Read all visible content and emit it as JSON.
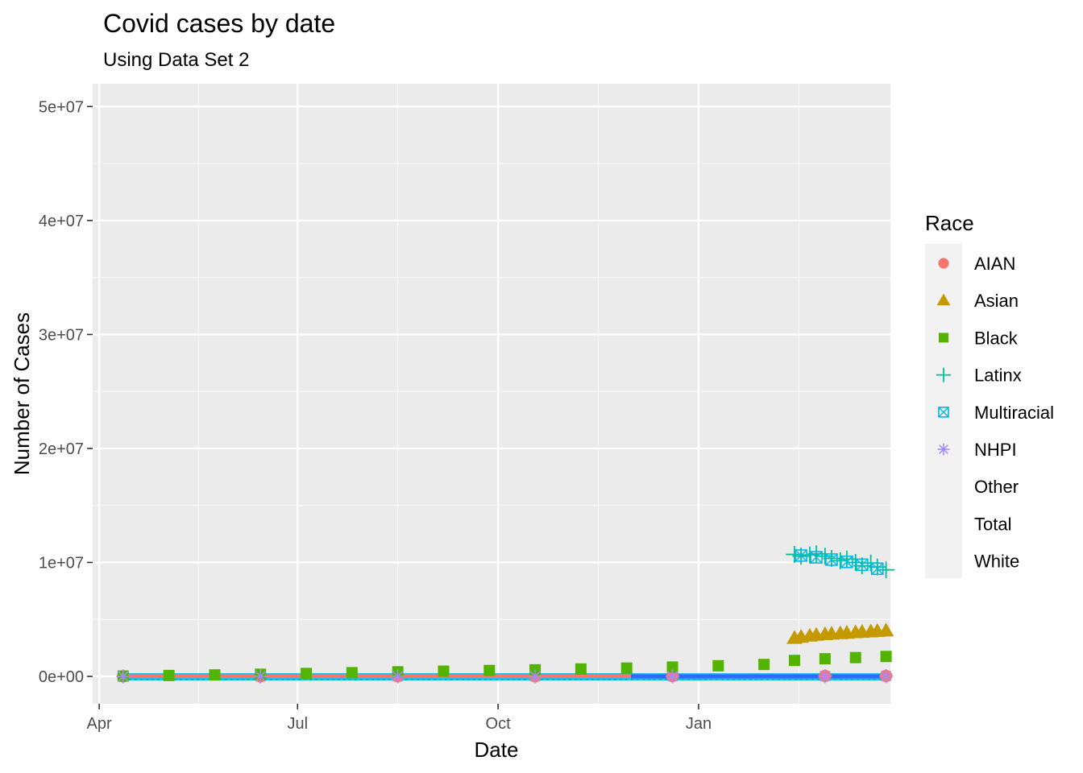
{
  "chart_data": {
    "type": "scatter",
    "title": "Covid cases by date",
    "subtitle": "Using Data Set 2",
    "xlabel": "Date",
    "ylabel": "Number of Cases",
    "x_range": [
      "2020-03-29",
      "2021-03-30"
    ],
    "ylim": [
      -2400000,
      52000000
    ],
    "x_ticks": [
      {
        "date": "2020-04-01",
        "label": "Apr"
      },
      {
        "date": "2020-07-01",
        "label": "Jul"
      },
      {
        "date": "2020-10-01",
        "label": "Oct"
      },
      {
        "date": "2021-01-01",
        "label": "Jan"
      }
    ],
    "y_ticks": [
      {
        "value": 0,
        "label": "0e+00"
      },
      {
        "value": 10000000,
        "label": "1e+07"
      },
      {
        "value": 20000000,
        "label": "2e+07"
      },
      {
        "value": 30000000,
        "label": "3e+07"
      },
      {
        "value": 40000000,
        "label": "4e+07"
      },
      {
        "value": 50000000,
        "label": "5e+07"
      }
    ],
    "grid": true,
    "legend": {
      "title": "Race",
      "position": "right"
    },
    "series": [
      {
        "name": "AIAN",
        "color": "#F8766D",
        "shape": "circle",
        "x": [
          "2020-04-12",
          "2020-06-14",
          "2020-08-16",
          "2020-10-18",
          "2020-12-20",
          "2021-02-28",
          "2021-03-28"
        ],
        "y": [
          3000,
          8000,
          14000,
          20000,
          30000,
          40000,
          45000
        ]
      },
      {
        "name": "Asian",
        "color": "#C49A00",
        "shape": "triangle",
        "x": [
          "2021-02-14",
          "2021-02-17",
          "2021-02-21",
          "2021-02-24",
          "2021-02-28",
          "2021-03-03",
          "2021-03-07",
          "2021-03-10",
          "2021-03-14",
          "2021-03-17",
          "2021-03-21",
          "2021-03-24",
          "2021-03-28"
        ],
        "y": [
          3350000,
          3450000,
          3550000,
          3620000,
          3680000,
          3720000,
          3760000,
          3800000,
          3850000,
          3880000,
          3920000,
          3960000,
          4000000
        ]
      },
      {
        "name": "Black",
        "color": "#53B400",
        "shape": "square",
        "x": [
          "2020-04-12",
          "2020-05-03",
          "2020-05-24",
          "2020-06-14",
          "2020-07-05",
          "2020-07-26",
          "2020-08-16",
          "2020-09-06",
          "2020-09-27",
          "2020-10-18",
          "2020-11-08",
          "2020-11-29",
          "2020-12-20",
          "2021-01-10",
          "2021-01-31",
          "2021-02-14",
          "2021-02-28",
          "2021-03-14",
          "2021-03-28"
        ],
        "y": [
          30000,
          80000,
          130000,
          190000,
          260000,
          330000,
          400000,
          460000,
          520000,
          580000,
          650000,
          730000,
          820000,
          930000,
          1050000,
          1400000,
          1550000,
          1650000,
          1750000
        ]
      },
      {
        "name": "Latinx",
        "color": "#00C094",
        "shape": "plus",
        "x": [
          "2021-02-14",
          "2021-02-17",
          "2021-02-21",
          "2021-02-24",
          "2021-02-28",
          "2021-03-03",
          "2021-03-07",
          "2021-03-10",
          "2021-03-14",
          "2021-03-17",
          "2021-03-21",
          "2021-03-24",
          "2021-03-28"
        ],
        "y": [
          10700000,
          10550000,
          10650000,
          10750000,
          10550000,
          10350000,
          10150000,
          10300000,
          10000000,
          9700000,
          9950000,
          9600000,
          9350000
        ]
      },
      {
        "name": "Multiracial",
        "color": "#00B6EB",
        "shape": "boxcross",
        "x": [
          "2021-02-17",
          "2021-02-24",
          "2021-03-03",
          "2021-03-10",
          "2021-03-17",
          "2021-03-24"
        ],
        "y": [
          10600000,
          10450000,
          10250000,
          10050000,
          9800000,
          9450000
        ]
      },
      {
        "name": "NHPI",
        "color": "#A58AFF",
        "shape": "asterisk",
        "x": [
          "2020-04-12",
          "2020-06-14",
          "2020-08-16",
          "2020-10-18",
          "2020-12-20",
          "2021-02-28",
          "2021-03-28"
        ],
        "y": [
          1000,
          4000,
          8000,
          12000,
          18000,
          26000,
          30000
        ]
      },
      {
        "name": "Other",
        "color": "#FB61D7",
        "shape": "none",
        "x": [],
        "y": []
      },
      {
        "name": "Total",
        "color": "#F8766D",
        "shape": "none",
        "x": [],
        "y": []
      },
      {
        "name": "White",
        "color": "#3366FF",
        "shape": "none",
        "x": [],
        "y": []
      }
    ]
  }
}
